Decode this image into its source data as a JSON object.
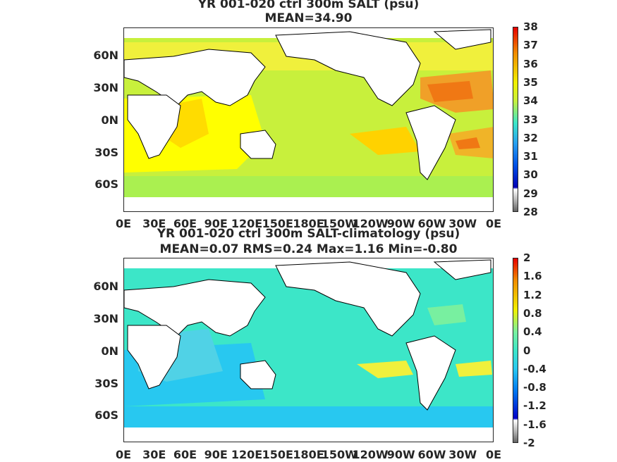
{
  "panel1": {
    "title_line1": "YR 001-020 ctrl 300m SALT (psu)",
    "title_line2": "MEAN=34.90",
    "y_ticks": [
      "60N",
      "30N",
      "0N",
      "30S",
      "60S"
    ],
    "x_ticks": [
      "0E",
      "30E",
      "60E",
      "90E",
      "120E",
      "150E",
      "180E",
      "150W",
      "120W",
      "90W",
      "60W",
      "30W",
      "0E"
    ],
    "colorbar_ticks": [
      "38",
      "37",
      "36",
      "35",
      "34",
      "33",
      "32",
      "31",
      "30",
      "29",
      "28"
    ]
  },
  "panel2": {
    "title_line1": "YR 001-020 ctrl 300m SALT-climatology (psu)",
    "title_line2": "MEAN=0.07   RMS=0.24   Max=1.16   Min=-0.80",
    "y_ticks": [
      "60N",
      "30N",
      "0N",
      "30S",
      "60S"
    ],
    "x_ticks": [
      "0E",
      "30E",
      "60E",
      "90E",
      "120E",
      "150E",
      "180E",
      "150W",
      "120W",
      "90W",
      "60W",
      "30W",
      "0E"
    ],
    "colorbar_ticks": [
      "2",
      "1.6",
      "1.2",
      "0.8",
      "0.4",
      "0",
      "-0.4",
      "-0.8",
      "-1.2",
      "-1.6",
      "-2"
    ]
  },
  "colors": {
    "salt_ocean": "#c8f03c",
    "salt_high": "#f07814",
    "salt_mid": "#fff000",
    "diff_ocean": "#3ce6c8",
    "diff_low": "#28c8f0",
    "diff_high": "#f0f03c"
  }
}
